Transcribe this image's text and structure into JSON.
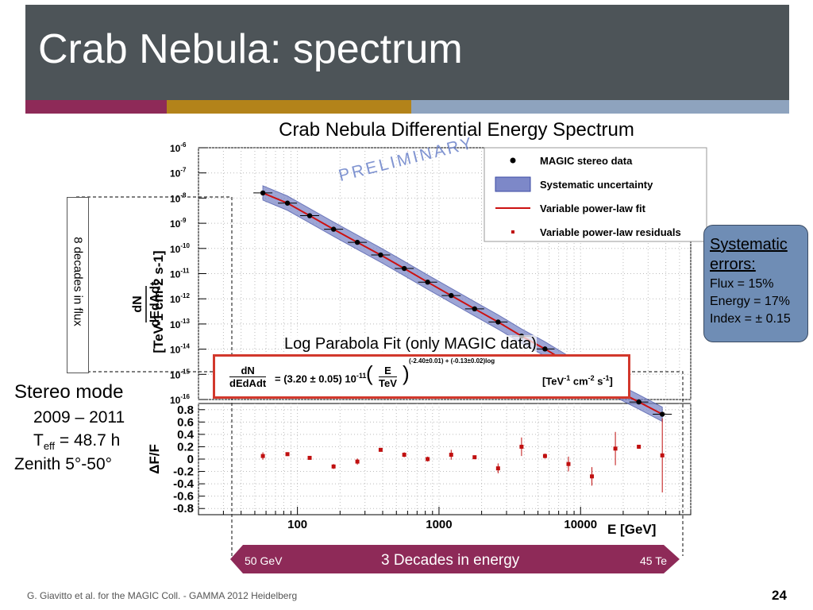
{
  "slide": {
    "title": "Crab Nebula: spectrum",
    "accent_colors": [
      "#8e2a58",
      "#b3831a",
      "#8ea3be"
    ],
    "footer": "G. Giavitto et al. for the MAGIC Coll. - GAMMA 2012 Heidelberg",
    "page_number": "24"
  },
  "side_label": "8 decades in flux",
  "stereo_box": {
    "title": "Stereo mode",
    "years": "2009 – 2011",
    "teff_prefix": "T",
    "teff_sub": "eff",
    "teff_value": " = 48.7 h",
    "zenith": "Zenith 5°-50°"
  },
  "systematic_errors": {
    "title": "Systematic errors:",
    "lines": [
      "Flux = 15%",
      "Energy  = 17%",
      "Index = ± 0.15"
    ]
  },
  "log_parabola": {
    "label": "Log Parabola Fit (only MAGIC data)",
    "formula_lhs_num": "dN",
    "formula_lhs_den": "dEdAdt",
    "norm": "= (3.20 ± 0.05) 10",
    "norm_exp": "-11",
    "base_num": "E",
    "base_den": "TeV",
    "index_exp": "(-2.40±0.01) + (-0.13±0.02)log",
    "units": "[TeV",
    "units_exp1": "-1",
    "units_mid": " cm",
    "units_exp2": "-2",
    "units_end": " s",
    "units_exp3": "-1",
    "units_close": "]"
  },
  "energy_arrow": {
    "label": "3 Decades in energy",
    "left_end": "50 GeV",
    "right_end": "45 Te",
    "color": "#8e2a58"
  },
  "chart_data": {
    "type": "scatter",
    "title": "Crab Nebula Differential Energy Spectrum",
    "watermark": "PRELIMINARY",
    "xlabel": "E [GeV]",
    "xscale": "log",
    "xlim": [
      20,
      60000
    ],
    "x_ticks": [
      "100",
      "1000",
      "10000"
    ],
    "top_panel": {
      "ylabel_num": "dN",
      "ylabel_den": "dEdAdt",
      "ylabel_units": "[TeV-1 cm-2 s-1]",
      "yscale": "log",
      "ylim": [
        1e-16,
        1e-06
      ],
      "y_tick_exponents": [
        "-6",
        "-7",
        "-8",
        "-9",
        "-10",
        "-11",
        "-12",
        "-13",
        "-14",
        "-15",
        "-16"
      ],
      "legend": [
        {
          "name": "MAGIC stereo data",
          "marker": "dot"
        },
        {
          "name": "Systematic uncertainty",
          "marker": "band"
        },
        {
          "name": "Variable power-law fit",
          "marker": "line"
        },
        {
          "name": "Variable power-law residuals",
          "marker": "square"
        }
      ],
      "legend_position": "top-right",
      "series": [
        {
          "name": "MAGIC stereo data",
          "x": [
            57,
            85,
            122,
            180,
            265,
            387,
            568,
            831,
            1219,
            1784,
            2614,
            3829,
            5606,
            8212,
            12026,
            17614,
            25797,
            37781
          ],
          "y": [
            1.6e-08,
            6.3e-09,
            2e-09,
            5.8e-10,
            1.75e-10,
            5.5e-11,
            1.6e-11,
            4.6e-12,
            1.35e-12,
            4e-13,
            1.2e-13,
            3.3e-14,
            1.02e-14,
            2.8e-15,
            7.8e-16,
            2.4e-16,
            8e-17,
            2.6e-17
          ]
        }
      ]
    },
    "bottom_panel": {
      "ylabel": "ΔF/F",
      "ylim": [
        -0.9,
        0.9
      ],
      "y_ticks": [
        "0.8",
        "0.6",
        "0.4",
        "0.2",
        "0",
        "-0.2",
        "-0.4",
        "-0.6",
        "-0.8"
      ],
      "series": [
        {
          "name": "Variable power-law residuals",
          "x": [
            57,
            85,
            122,
            180,
            265,
            387,
            568,
            831,
            1219,
            1784,
            2614,
            3829,
            5606,
            8212,
            12026,
            17614,
            25797,
            37781
          ],
          "y": [
            0.05,
            0.08,
            0.02,
            -0.12,
            -0.04,
            0.15,
            0.07,
            0.0,
            0.07,
            0.03,
            -0.15,
            0.2,
            0.05,
            -0.08,
            -0.28,
            0.17,
            0.2,
            0.06
          ],
          "err": [
            0.06,
            0.03,
            0.03,
            0.04,
            0.05,
            0.03,
            0.04,
            0.04,
            0.08,
            0.03,
            0.08,
            0.15,
            0.04,
            0.12,
            0.15,
            0.27,
            0.03,
            0.6
          ]
        }
      ]
    }
  }
}
